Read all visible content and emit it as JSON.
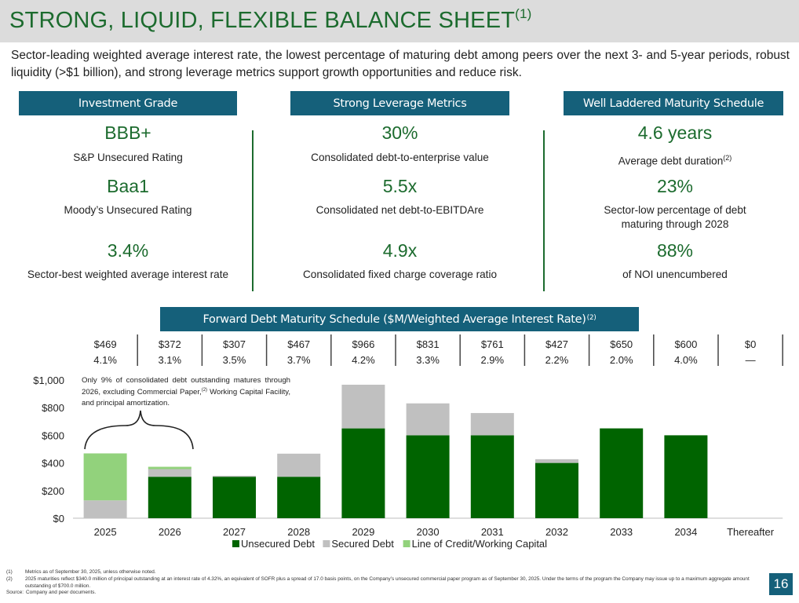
{
  "page": {
    "title": "STRONG, LIQUID, FLEXIBLE BALANCE SHEET",
    "title_note": "(1)",
    "subtitle": "Sector-leading weighted average interest rate, the lowest percentage of maturing debt among peers over the next 3- and 5-year periods, robust liquidity (>$1 billion), and strong leverage metrics support growth opportunities and reduce risk.",
    "page_number": "16"
  },
  "columns": [
    {
      "header": "Investment Grade",
      "metrics": [
        {
          "value": "BBB+",
          "label": "S&P Unsecured Rating",
          "note": ""
        },
        {
          "value": "Baa1",
          "label": "Moody’s Unsecured Rating",
          "note": ""
        },
        {
          "value": "3.4%",
          "label": "Sector-best weighted average interest rate",
          "note": ""
        }
      ]
    },
    {
      "header": "Strong Leverage Metrics",
      "metrics": [
        {
          "value": "30%",
          "label": "Consolidated debt-to-enterprise value",
          "note": ""
        },
        {
          "value": "5.5x",
          "label": "Consolidated net debt-to-EBITDAre",
          "note": ""
        },
        {
          "value": "4.9x",
          "label": "Consolidated fixed charge coverage ratio",
          "note": ""
        }
      ]
    },
    {
      "header": "Well Laddered Maturity Schedule",
      "metrics": [
        {
          "value": "4.6 years",
          "label": "Average debt duration",
          "note": "(2)"
        },
        {
          "value": "23%",
          "label": "Sector-low percentage of debt maturing through 2028",
          "note": ""
        },
        {
          "value": "88%",
          "label": "of NOI unencumbered",
          "note": ""
        }
      ]
    }
  ],
  "schedule": {
    "header": "Forward Debt Maturity Schedule ($M/Weighted Average Interest Rate)",
    "header_note": "(2)",
    "totals": [
      "$469",
      "$372",
      "$307",
      "$467",
      "$966",
      "$831",
      "$761",
      "$427",
      "$650",
      "$600",
      "$0"
    ],
    "rates": [
      "4.1%",
      "3.1%",
      "3.5%",
      "3.7%",
      "4.2%",
      "3.3%",
      "2.9%",
      "2.2%",
      "2.0%",
      "4.0%",
      "—"
    ]
  },
  "annotation": {
    "text": "Only 9% of consolidated debt outstanding matures through 2026, excluding Commercial Paper,",
    "note": "(2)",
    "text2": " Working Capital Facility, and principal amortization."
  },
  "chart_data": {
    "type": "bar",
    "stacked": true,
    "categories": [
      "2025",
      "2026",
      "2027",
      "2028",
      "2029",
      "2030",
      "2031",
      "2032",
      "2033",
      "2034",
      "Thereafter"
    ],
    "series": [
      {
        "name": "Unsecured Debt",
        "color": "#006400",
        "values": [
          0,
          300,
          300,
          300,
          650,
          600,
          600,
          400,
          650,
          600,
          0
        ]
      },
      {
        "name": "Secured Debt",
        "color": "#c0c0c0",
        "values": [
          129,
          55,
          7,
          167,
          316,
          231,
          161,
          27,
          0,
          0,
          0
        ]
      },
      {
        "name": "Line of Credit/Working Capital",
        "color": "#92d27c",
        "values": [
          340,
          17,
          0,
          0,
          0,
          0,
          0,
          0,
          0,
          0,
          0
        ]
      }
    ],
    "y_ticks": [
      "$0",
      "$200",
      "$400",
      "$600",
      "$800",
      "$1,000"
    ],
    "y_tick_values": [
      0,
      200,
      400,
      600,
      800,
      1000
    ],
    "ylim": [
      0,
      1000
    ],
    "legend_position": "bottom"
  },
  "footnotes": [
    {
      "key": "(1)",
      "text": "Metrics as of September 30, 2025, unless otherwise noted."
    },
    {
      "key": "(2)",
      "text": "2025 maturities reflect $340.0 million of principal outstanding at an interest rate of 4.32%, an equivalent of SOFR plus a spread of 17.0 basis points, on the Company’s unsecured commercial paper program as of September 30, 2025. Under the terms of the program the Company may issue up to a maximum aggregate amount outstanding of $700.0 million."
    },
    {
      "key": "Source:",
      "text": "Company and peer documents."
    }
  ]
}
